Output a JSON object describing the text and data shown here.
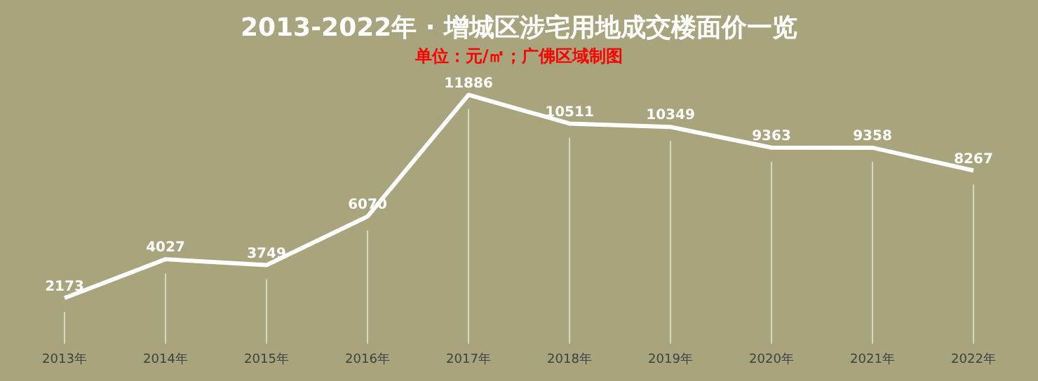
{
  "chart_data": {
    "type": "line",
    "title": "2013-2022年 · 增城区涉宅用地成交楼面价一览",
    "subtitle": "单位：元/㎡；广佛区域制图",
    "categories": [
      "2013年",
      "2014年",
      "2015年",
      "2016年",
      "2017年",
      "2018年",
      "2019年",
      "2020年",
      "2021年",
      "2022年"
    ],
    "series": [
      {
        "color": "#ffffff",
        "values": [
          2173,
          4027,
          3749,
          6070,
          11886,
          10511,
          10349,
          9363,
          9358,
          8267
        ]
      }
    ],
    "data_labels": true,
    "grid": "x",
    "legend": false,
    "marker": "none",
    "line_style": "solid"
  }
}
